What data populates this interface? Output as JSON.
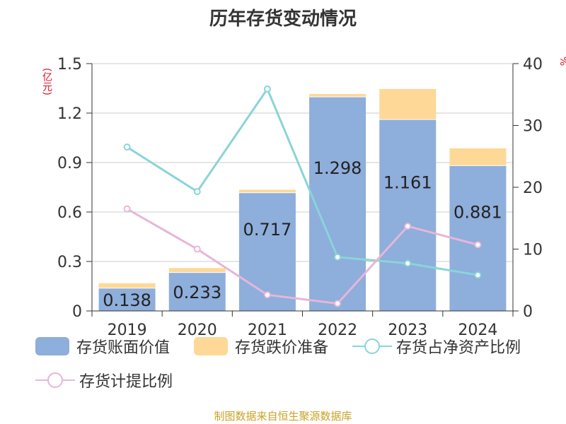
{
  "title": "历年存货变动情况",
  "left_unit": "(亿元)",
  "right_unit": "%",
  "source": "制图数据来自恒生聚源数据库",
  "legend": {
    "book_value": "存货账面价值",
    "impairment": "存货跌价准备",
    "net_assets_ratio": "存货占净资产比例",
    "provision_ratio": "存货计提比例"
  },
  "colors": {
    "book_value": "#8eaedb",
    "impairment": "#fdd897",
    "net_assets_ratio": "#8ad4d8",
    "provision_ratio": "#e6b6d8"
  },
  "chart_data": {
    "type": "bar",
    "stacked": true,
    "categories": [
      "2019",
      "2020",
      "2021",
      "2022",
      "2023",
      "2024"
    ],
    "series": [
      {
        "name": "存货账面价值",
        "type": "bar",
        "axis": "left",
        "values": [
          0.138,
          0.233,
          0.717,
          1.298,
          1.161,
          0.881
        ],
        "labels": [
          "0.138",
          "0.233",
          "0.717",
          "1.298",
          "1.161",
          "0.881"
        ]
      },
      {
        "name": "存货跌价准备",
        "type": "bar",
        "axis": "left",
        "values": [
          0.03,
          0.027,
          0.018,
          0.018,
          0.185,
          0.105
        ]
      },
      {
        "name": "存货占净资产比例",
        "type": "line",
        "axis": "right",
        "values": [
          26.5,
          19.3,
          35.9,
          8.7,
          7.7,
          5.8
        ]
      },
      {
        "name": "存货计提比例",
        "type": "line",
        "axis": "right",
        "values": [
          16.5,
          10.0,
          2.6,
          1.2,
          13.7,
          10.7
        ]
      }
    ],
    "y_left": {
      "min": 0,
      "max": 1.5,
      "ticks": [
        "0",
        "0.3",
        "0.6",
        "0.9",
        "1.2",
        "1.5"
      ]
    },
    "y_right": {
      "min": 0,
      "max": 40,
      "ticks": [
        "0",
        "10",
        "20",
        "30",
        "40"
      ]
    },
    "grid": true,
    "legend_position": "bottom"
  }
}
